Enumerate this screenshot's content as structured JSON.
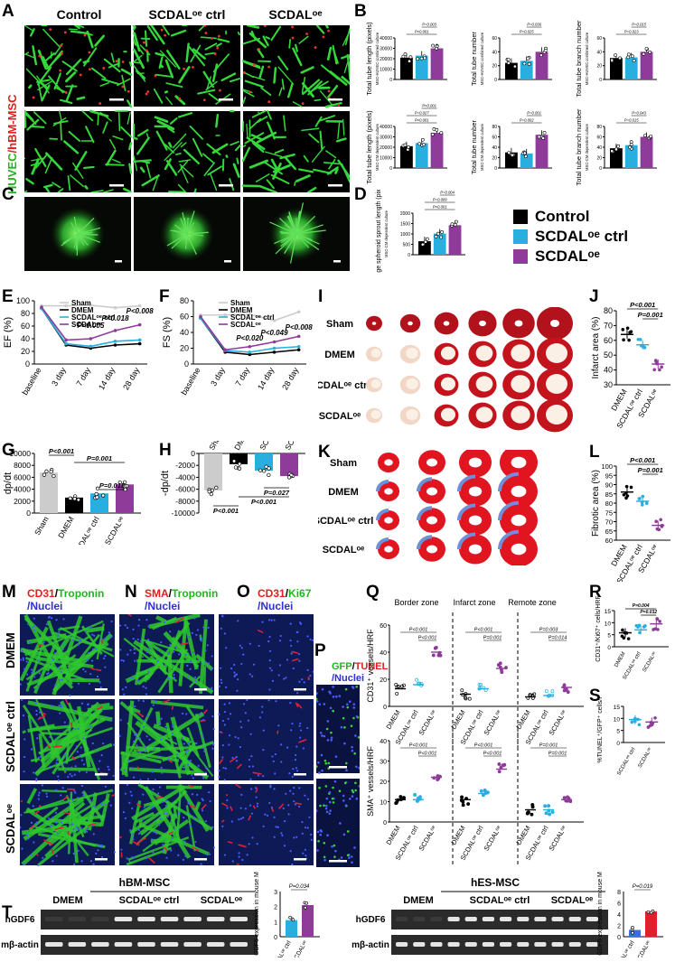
{
  "panel_letters": [
    "A",
    "B",
    "C",
    "D",
    "E",
    "F",
    "G",
    "H",
    "I",
    "J",
    "K",
    "L",
    "M",
    "N",
    "O",
    "P",
    "Q",
    "R",
    "S",
    "T"
  ],
  "panelA": {
    "col_headers": [
      "Control",
      "SCDALᵒᵉ ctrl",
      "SCDALᵒᵉ"
    ],
    "side_label_green": "HUVEC",
    "side_label_red": "/hBM-MSC"
  },
  "legend": {
    "items": [
      "Control",
      "SCDALᵒᵉ ctrl",
      "SCDALᵒᵉ"
    ],
    "colors": [
      "#000000",
      "#29aee0",
      "#8e3b9a"
    ]
  },
  "panelB": {
    "charts": [
      {
        "ylabel": "Total tube length (pixels)",
        "sub": "MSC-HUVEC combined culture",
        "ticks": [
          "0",
          "10000",
          "20000",
          "30000",
          "40000"
        ],
        "max": 40000,
        "values": [
          21000,
          23000,
          30000
        ],
        "pvals": [
          "P<0.001",
          "P=0.003"
        ]
      },
      {
        "ylabel": "Total tube number",
        "sub": "MSC-HUVEC combined culture",
        "ticks": [
          "0",
          "20",
          "40",
          "60"
        ],
        "max": 60,
        "values": [
          24,
          27,
          40
        ],
        "pvals": [
          "P=0.025",
          "P=0.036"
        ]
      },
      {
        "ylabel": "Total tube branch number",
        "sub": "MSC-HUVEC combined culture",
        "ticks": [
          "0",
          "20",
          "40",
          "60"
        ],
        "max": 60,
        "values": [
          31,
          32,
          40
        ],
        "pvals": [
          "P=0.023",
          "P=0.015"
        ]
      },
      {
        "ylabel": "Total tube length (pixels)",
        "sub": "MSC-CM dependent culture",
        "ticks": [
          "0",
          "10000",
          "20000",
          "30000",
          "40000"
        ],
        "max": 40000,
        "values": [
          21000,
          24000,
          34000
        ],
        "pvals": [
          "P<0.001",
          "P=0.027",
          "P<0.001"
        ]
      },
      {
        "ylabel": "Total tube number",
        "sub": "MSC-CM dependent culture",
        "ticks": [
          "0",
          "20",
          "40",
          "60",
          "80"
        ],
        "max": 80,
        "values": [
          30,
          28,
          64
        ],
        "pvals": [
          "P=0.002",
          "P=0.001"
        ]
      },
      {
        "ylabel": "Total tube branch number",
        "sub": "MSC-CM dependent culture",
        "ticks": [
          "0",
          "20",
          "40",
          "60",
          "80"
        ],
        "max": 80,
        "values": [
          38,
          44,
          60
        ],
        "pvals": [
          "P=0.015",
          "P=0.043"
        ]
      }
    ]
  },
  "panelD": {
    "ylabel": "Average spheroid sprout length (pixels)",
    "sub": "MSC-CM dependent culture",
    "ticks": [
      "0",
      "500",
      "1000",
      "1500",
      "2000"
    ],
    "pvals": [
      "P<0.001",
      "P=0.009",
      "P=0.004"
    ]
  },
  "panelE": {
    "ylabel": "EF (%)",
    "ticks": [
      "0",
      "20",
      "40",
      "60",
      "80",
      "100"
    ],
    "x": [
      "baseline",
      "3 day",
      "7 day",
      "14 day",
      "28 day"
    ],
    "legend": [
      "Sham",
      "DMEM",
      "SCDALᵒᵉ ctrl",
      "SCDALᵒᵉ"
    ],
    "pvals": [
      "P<0.005",
      "P<0.018",
      "P<0.008"
    ]
  },
  "panelF": {
    "ylabel": "FS (%)",
    "ticks": [
      "0",
      "20",
      "40",
      "60",
      "80"
    ],
    "x": [
      "baseline",
      "3 day",
      "7 day",
      "14 day",
      "28 day"
    ],
    "legend": [
      "Sham",
      "DMEM",
      "SCDALᵒᵉ ctrl",
      "SCDALᵒᵉ"
    ],
    "pvals": [
      "P<0.020",
      "P<0.049",
      "P<0.008"
    ]
  },
  "panelG": {
    "ylabel": "dp/dt",
    "ticks": [
      "0",
      "2000",
      "4000",
      "6000",
      "8000",
      "10000"
    ],
    "x": [
      "Sham",
      "DMEM",
      "SCDALᵒᵉ ctrl",
      "SCDALᵒᵉ"
    ],
    "pvals": [
      "P<0.001",
      "P=0.001",
      "P=0.015"
    ]
  },
  "panelH": {
    "ylabel": "-dp/dt",
    "ticks": [
      "0",
      "-2000",
      "-4000",
      "-6000",
      "-8000",
      "-10000"
    ],
    "x": [
      "Sham",
      "DMEM",
      "SCDALᵒᵉ ctrl",
      "SCDALᵒᵉ"
    ],
    "pvals": [
      "P<0.001",
      "P<0.001",
      "P=0.027"
    ]
  },
  "panelI": {
    "rows": [
      "Sham",
      "DMEM",
      "SCDALᵒᵉ ctrl",
      "SCDALᵒᵉ"
    ]
  },
  "panelJ": {
    "ylabel": "Infarct area (%)",
    "ticks": [
      "30",
      "40",
      "50",
      "60",
      "70",
      "80"
    ],
    "x": [
      "DMEM",
      "SCDALᵒᵉ ctrl",
      "SCDALᵒᵉ"
    ],
    "pvals": [
      "P<0.001",
      "P=0.001"
    ]
  },
  "panelK": {
    "rows": [
      "Sham",
      "DMEM",
      "SCDALᵒᵉ ctrl",
      "SCDALᵒᵉ"
    ]
  },
  "panelL": {
    "ylabel": "Fibrotic area (%)",
    "ticks": [
      "60",
      "65",
      "70",
      "75",
      "80",
      "85",
      "90",
      "95",
      "100"
    ],
    "x": [
      "DMEM",
      "SCDALᵒᵉ ctrl",
      "SCDALᵒᵉ"
    ],
    "pvals": [
      "P<0.001",
      "P=0.001"
    ]
  },
  "panelMNO": {
    "M": "CD31/Troponin /Nuclei",
    "N": "SMA/Troponin /Nuclei",
    "O": "CD31/Ki67 /Nuclei",
    "rows": [
      "DMEM",
      "SCDALᵒᵉ ctrl",
      "SCDALᵒᵉ"
    ]
  },
  "panelP": {
    "title": "GFP/TUNEL /Nuclei"
  },
  "panelQ": {
    "zones": [
      "Border zone",
      "Infarct zone",
      "Remote zone"
    ],
    "ylabel_top": "CD31⁺ vessels/HRF",
    "ylabel_bot": "SMA⁺ vessels/HRF",
    "ticks_top": [
      "0",
      "20",
      "40",
      "60"
    ],
    "ticks_bot": [
      "0",
      "10",
      "20",
      "30",
      "40"
    ],
    "x": [
      "DMEM",
      "SCDALᵒᵉ ctrl",
      "SCDALᵒᵉ"
    ],
    "pvals_top": [
      "P<0.001",
      "P<0.001",
      "P<0.001",
      "P=0.001",
      "P=0.003",
      "P=0.014"
    ],
    "pvals_bot": [
      "P<0.001",
      "P<0.001",
      "P<0.001",
      "P<0.001",
      "P=0.001",
      "P=0.001"
    ]
  },
  "panelR": {
    "ylabel": "CD31⁺/Ki67⁺ cells/HRF",
    "ticks": [
      "0",
      "5",
      "10",
      "15"
    ],
    "x": [
      "DMEM",
      "SCDALᵒᵉ ctrl",
      "SCDALᵒᵉ"
    ],
    "pvals": [
      "P=0.004",
      "P=0.032"
    ]
  },
  "panelS": {
    "ylabel": "%TUNEL⁺/GFP⁺ cells/HRF",
    "ticks": [
      "0",
      "5",
      "10",
      "15"
    ],
    "x": [
      "SCDALᵒᵉ ctrl",
      "SCDALᵒᵉ"
    ]
  },
  "panelT": {
    "left_title": "hBM-MSC",
    "right_title": "hES-MSC",
    "lanes": [
      "DMEM",
      "SCDALᵒᵉ ctrl",
      "SCDALᵒᵉ"
    ],
    "rows": [
      "hGDF6",
      "mβ-actin"
    ],
    "ylabel": "Human GDF6 expression in mouse MI hearts",
    "left_chart": {
      "ticks": [
        "0",
        "1",
        "2",
        "3"
      ],
      "pval": "P=0.034",
      "x": [
        "SCDALᵒᵉ ctrl",
        "SCDALᵒᵉ"
      ]
    },
    "right_chart": {
      "ticks": [
        "0",
        "2",
        "4",
        "6",
        "8"
      ],
      "pval": "P=0.019",
      "x": [
        "SCDALᵒᵉ ctrl",
        "SCDALᵒᵉ"
      ]
    }
  }
}
